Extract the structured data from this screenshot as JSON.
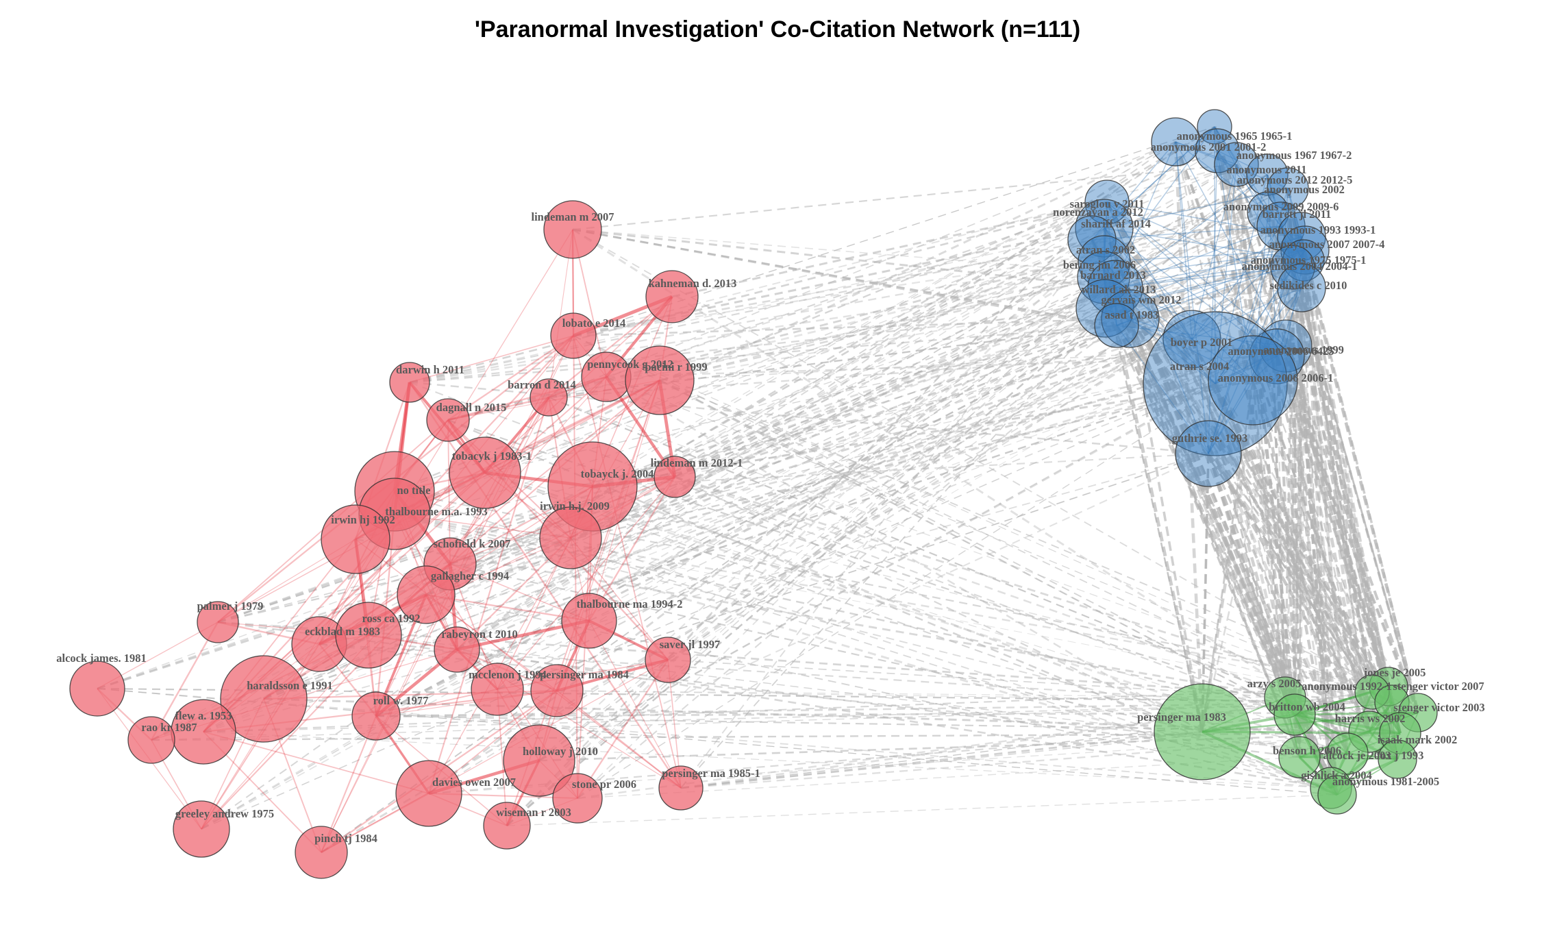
{
  "title": "'Paranormal Investigation' Co-Citation Network (n=111)",
  "colors": {
    "red": "#ef6a74",
    "blue": "#3a7ec0",
    "green": "#6cc26c",
    "red_edge": "#e5323c",
    "gray_edge": "#b4b4b4"
  },
  "clusters": {
    "red": [
      "lindeman m 2007",
      "kahneman d. 2013",
      "lobato e 2014",
      "pennycook g 2012",
      "pacini r 1999",
      "darwin h 2011",
      "barron d 2014",
      "dagnall n 2015",
      "tobacyk j 1983-1",
      "tobayck j. 2004",
      "lindeman m 2012-1",
      "no title",
      "thalbourne m.a. 1993",
      "irwin hj 1992",
      "irwin h.j. 2009",
      "schofield k 2007",
      "gallagher c 1994",
      "palmer j 1979",
      "thalbourne ma 1994-2",
      "eckblad m 1983",
      "ross ca 1992",
      "rabeyron t 2010",
      "saver jl 1997",
      "alcock james. 1981",
      "haraldsson e 1991",
      "mcclenon j 1994",
      "persinger ma 1984",
      "roll w. 1977",
      "flew a. 1953",
      "rao kr 1987",
      "holloway j 2010",
      "davies owen 2007",
      "stone pr 2006",
      "persinger ma 1985-1",
      "wiseman r 2003",
      "greeley andrew 1975",
      "pinch tj 1984"
    ],
    "blue": [
      "anonymous 1965 1965-1",
      "anonymous 2001 2001-2",
      "anonymous 1967 1967-2",
      "anonymous 2011",
      "anonymous 2012 2012-5",
      "anonymous 2002",
      "saroglou v 2011",
      "anonymous 2009 2009-6",
      "norenzayan a 2012",
      "shariff af 2014",
      "barrett jl 2011",
      "anonymous 1993 1993-1",
      "anonymous 2007 2007-4",
      "anonymous 1975 1975-1",
      "atran s 2002",
      "bering jm 2006",
      "anonymous 2004 2004-1",
      "barnard 2013",
      "sedikides c 2010",
      "willard ak 2013",
      "gervais wm 2012",
      "asad t 1983",
      "boyer p 2001",
      "anonymous 1999",
      "anonymous 2006 6425",
      "atran s 2004",
      "anonymous 2006 2006-1",
      "guthrie se. 1993"
    ],
    "green": [
      "persinger ma 1983",
      "arzy s 2005",
      "jones je 2005",
      "anonymous 1992-1",
      "stenger victor 2007",
      "britton wb 2004",
      "stenger victor 2003",
      "harris ws 2002",
      "isaak mark 2002",
      "benson h 2006",
      "alcock je 2003",
      "fox j 1993",
      "gishlick a 2004",
      "anonymous 1981-2005"
    ]
  }
}
